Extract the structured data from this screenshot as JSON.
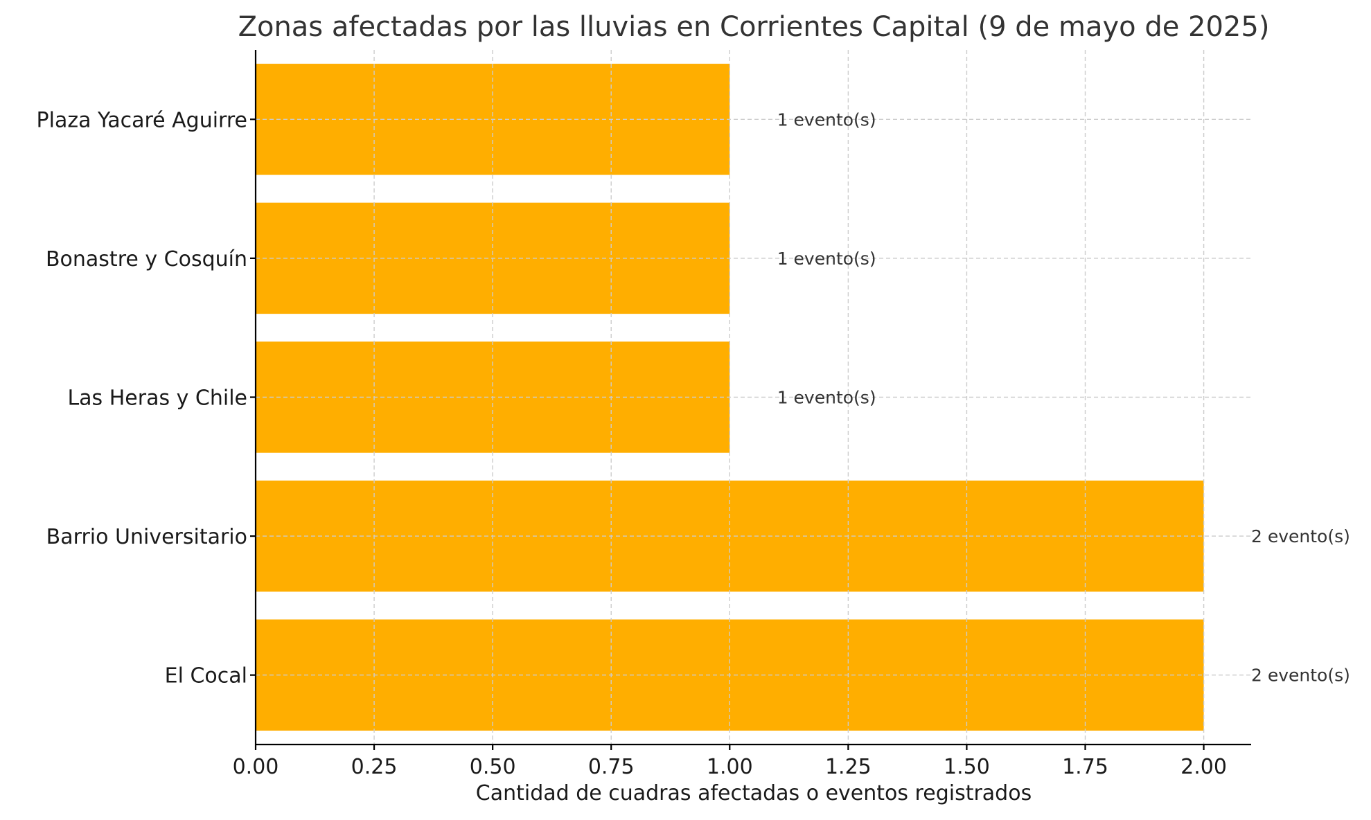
{
  "chart_data": {
    "type": "bar",
    "orientation": "horizontal",
    "title": "Zonas afectadas por las lluvias en Corrientes Capital (9 de mayo de 2025)",
    "xlabel": "Cantidad de cuadras afectadas o eventos registrados",
    "ylabel": "",
    "categories": [
      "El Cocal",
      "Barrio Universitario",
      "Las Heras y Chile",
      "Bonastre y Cosquín",
      "Plaza Yacaré Aguirre"
    ],
    "values": [
      2,
      2,
      1,
      1,
      1
    ],
    "data_labels": [
      "2 evento(s)",
      "2 evento(s)",
      "1 evento(s)",
      "1 evento(s)",
      "1 evento(s)"
    ],
    "xlim": [
      0,
      2.1
    ],
    "x_ticks": [
      0,
      0.25,
      0.5,
      0.75,
      1,
      1.25,
      1.5,
      1.75,
      2
    ],
    "x_tick_labels": [
      "0.00",
      "0.25",
      "0.50",
      "0.75",
      "1.00",
      "1.25",
      "1.50",
      "1.75",
      "2.00"
    ],
    "grid": true,
    "bar_color": "#FFAE00"
  }
}
